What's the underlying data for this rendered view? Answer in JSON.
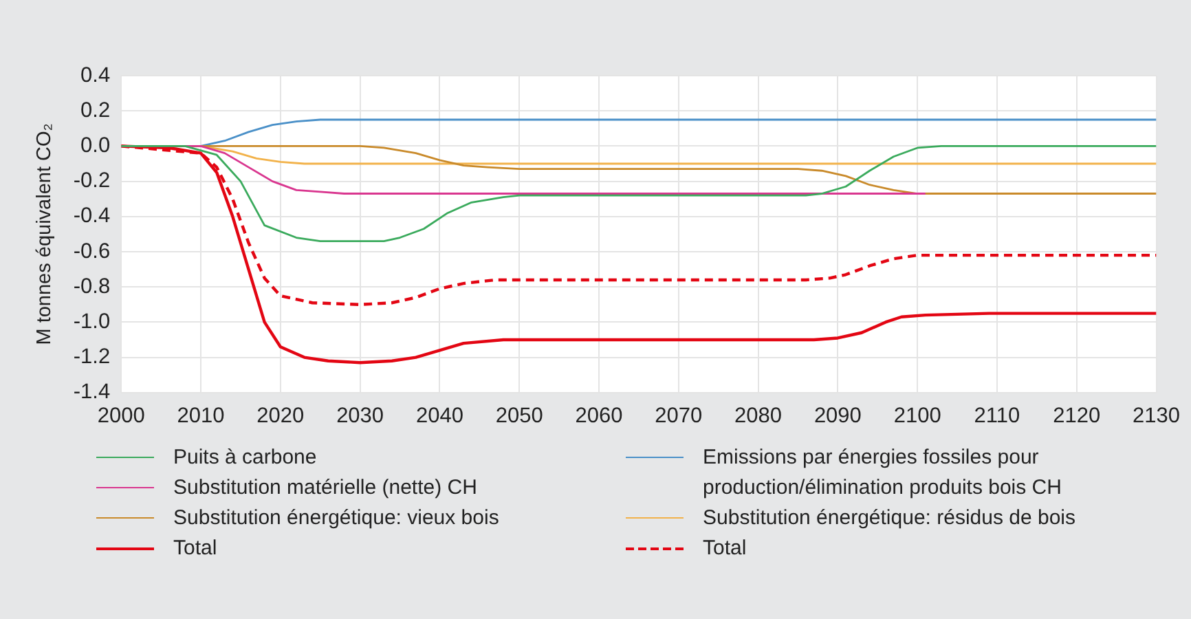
{
  "chart_data": {
    "type": "line",
    "ylabel": "M tonnes équivalent CO₂",
    "xlim": [
      2000,
      2130
    ],
    "xticks": [
      2000,
      2010,
      2020,
      2030,
      2040,
      2050,
      2060,
      2070,
      2080,
      2090,
      2100,
      2110,
      2120,
      2130
    ],
    "ylim": [
      -1.4,
      0.4
    ],
    "yticks": [
      -1.4,
      -1.2,
      {
        "value": -1,
        "label": "-1.0"
      },
      -0.8,
      -0.6,
      -0.4,
      -0.2,
      {
        "value": 0,
        "label": "0.0"
      },
      0.2,
      0.4
    ],
    "grid": true,
    "legend": "bottom",
    "marker": "none",
    "series": [
      {
        "name": "Puits à carbone",
        "color": "#3aaa5c",
        "x": [
          2000,
          2008,
          2012,
          2015,
          2018,
          2022,
          2025,
          2033,
          2035,
          2038,
          2041,
          2044,
          2048,
          2050,
          2086,
          2088,
          2091,
          2094,
          2097,
          2100,
          2103,
          2130
        ],
        "values": [
          0,
          0,
          -0.05,
          -0.2,
          -0.45,
          -0.52,
          -0.54,
          -0.54,
          -0.52,
          -0.47,
          -0.38,
          -0.32,
          -0.29,
          -0.28,
          -0.28,
          -0.27,
          -0.23,
          -0.14,
          -0.06,
          -0.01,
          0,
          0
        ]
      },
      {
        "name": "Substitution matérielle (nette) CH",
        "color": "#d9368f",
        "x": [
          2000,
          2010,
          2013,
          2016,
          2019,
          2022,
          2025,
          2028,
          2101
        ],
        "values": [
          0,
          0,
          -0.04,
          -0.12,
          -0.2,
          -0.25,
          -0.26,
          -0.27,
          -0.27
        ]
      },
      {
        "name": "Substitution énergétique: vieux bois",
        "color": "#c98a2a",
        "x": [
          2000,
          2030,
          2033,
          2037,
          2040,
          2043,
          2046,
          2050,
          2085,
          2088,
          2091,
          2094,
          2097,
          2100,
          2130
        ],
        "values": [
          0,
          0,
          -0.01,
          -0.04,
          -0.08,
          -0.11,
          -0.12,
          -0.13,
          -0.13,
          -0.14,
          -0.17,
          -0.22,
          -0.25,
          -0.27,
          -0.27
        ]
      },
      {
        "name": "Total",
        "color": "#e30613",
        "line_style": "solid",
        "x": [
          2000,
          2006,
          2010,
          2012,
          2014,
          2016,
          2018,
          2020,
          2023,
          2026,
          2030,
          2034,
          2037,
          2040,
          2043,
          2048,
          2087,
          2090,
          2093,
          2096,
          2098,
          2101,
          2109,
          2130
        ],
        "values": [
          0,
          -0.01,
          -0.04,
          -0.15,
          -0.4,
          -0.7,
          -1.0,
          -1.14,
          -1.2,
          -1.22,
          -1.23,
          -1.22,
          -1.2,
          -1.16,
          -1.12,
          -1.1,
          -1.1,
          -1.09,
          -1.06,
          -1.0,
          -0.97,
          -0.96,
          -0.95,
          -0.95
        ]
      },
      {
        "name": "Emissions par énergies fossiles pour production/élimination produits bois CH",
        "color": "#4a90c8",
        "x": [
          2000,
          2010,
          2013,
          2016,
          2019,
          2022,
          2025,
          2130
        ],
        "values": [
          0,
          0,
          0.03,
          0.08,
          0.12,
          0.14,
          0.15,
          0.15
        ]
      },
      {
        "name": "Substitution énergétique: résidus de bois",
        "color": "#f2b24a",
        "x": [
          2000,
          2010,
          2014,
          2017,
          2020,
          2023,
          2130
        ],
        "values": [
          0,
          0,
          -0.03,
          -0.07,
          -0.09,
          -0.1,
          -0.1
        ]
      },
      {
        "name": "Total",
        "color": "#e30613",
        "line_style": "dashed",
        "x": [
          2000,
          2010,
          2012,
          2014,
          2016,
          2018,
          2020,
          2024,
          2030,
          2034,
          2037,
          2040,
          2043,
          2047,
          2086,
          2089,
          2091,
          2094,
          2097,
          2100,
          2130
        ],
        "values": [
          0,
          -0.04,
          -0.12,
          -0.3,
          -0.55,
          -0.75,
          -0.85,
          -0.89,
          -0.9,
          -0.89,
          -0.86,
          -0.81,
          -0.78,
          -0.76,
          -0.76,
          -0.75,
          -0.73,
          -0.68,
          -0.64,
          -0.62,
          -0.62
        ]
      }
    ]
  }
}
